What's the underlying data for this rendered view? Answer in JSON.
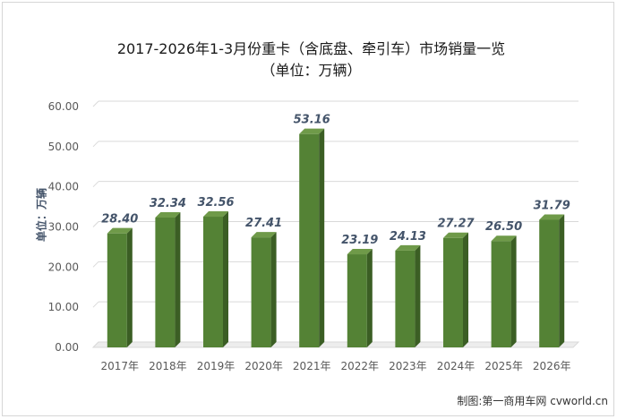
{
  "title_line1": "2017-2026年1-3月份重卡（含底盘、牵引车）市场销量一览",
  "title_line2": "（单位：万辆）",
  "credit": "制图:第一商用车网 cvworld.cn",
  "colors": {
    "bar_front": "#548235",
    "bar_side": "#3b5e24",
    "bar_top": "#6f9a49",
    "label": "#44546a",
    "grid": "#d9d9d9",
    "tick": "#595959"
  },
  "chart_data": {
    "type": "bar",
    "categories": [
      "2017年",
      "2018年",
      "2019年",
      "2020年",
      "2021年",
      "2022年",
      "2023年",
      "2024年",
      "2025年",
      "2026年"
    ],
    "values": [
      28.4,
      32.34,
      32.56,
      27.41,
      53.16,
      23.19,
      24.13,
      27.27,
      26.5,
      31.79
    ],
    "value_labels": [
      "28.40",
      "32.34",
      "32.56",
      "27.41",
      "53.16",
      "23.19",
      "24.13",
      "27.27",
      "26.50",
      "31.79"
    ],
    "ylabel": "单位：万辆",
    "xlabel": "",
    "ylim": [
      0,
      60
    ],
    "yticks": [
      "0.00",
      "10.00",
      "20.00",
      "30.00",
      "40.00",
      "50.00",
      "60.00"
    ],
    "grid": true,
    "legend": "none",
    "style": "3d-column"
  }
}
